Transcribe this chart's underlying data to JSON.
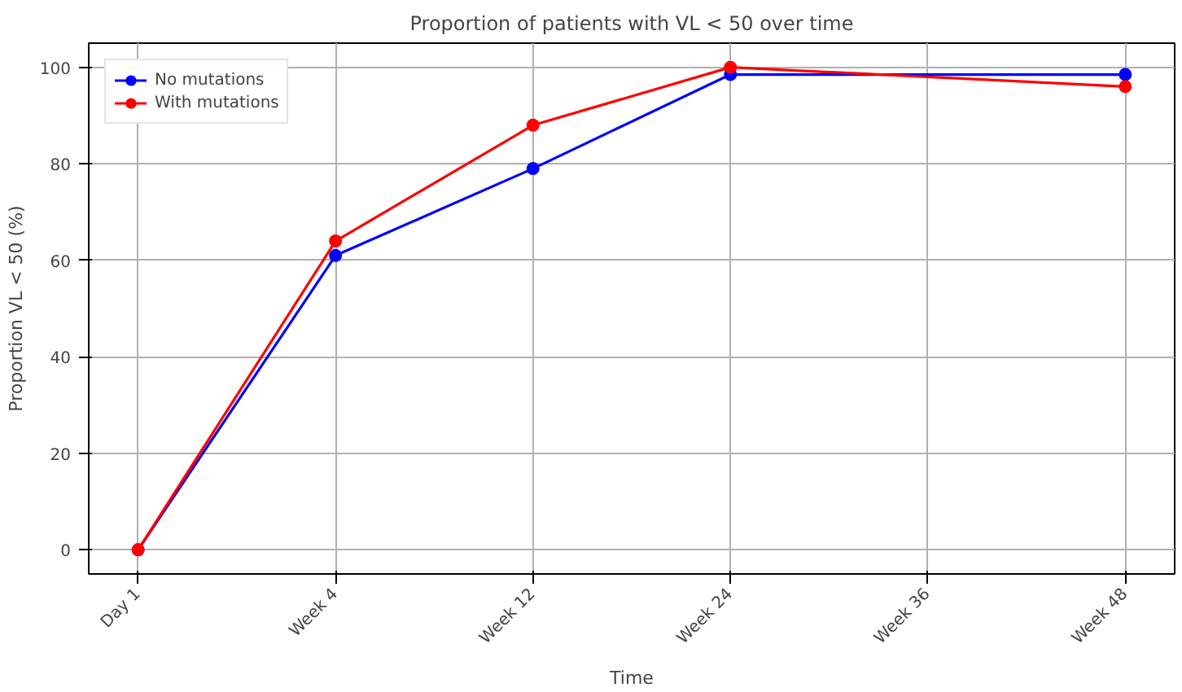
{
  "chart_data": {
    "type": "line",
    "title": "Proportion of patients with VL < 50 over time",
    "xlabel": "Time",
    "ylabel": "Proportion VL < 50 (%)",
    "categories": [
      "Day 1",
      "Week 4",
      "Week 12",
      "Week 24",
      "Week 36",
      "Week 48"
    ],
    "series": [
      {
        "name": "No mutations",
        "color": "#0000ff",
        "values": [
          0,
          61,
          79,
          98.5,
          null,
          98.5
        ]
      },
      {
        "name": "With mutations",
        "color": "#ff0000",
        "values": [
          0,
          64,
          88,
          100,
          null,
          96
        ]
      }
    ],
    "ylim": [
      -5,
      105
    ],
    "yticks": [
      0,
      20,
      40,
      60,
      80,
      100
    ],
    "grid": true,
    "legend": "top left",
    "marker": "circle",
    "line_style": "solid"
  }
}
